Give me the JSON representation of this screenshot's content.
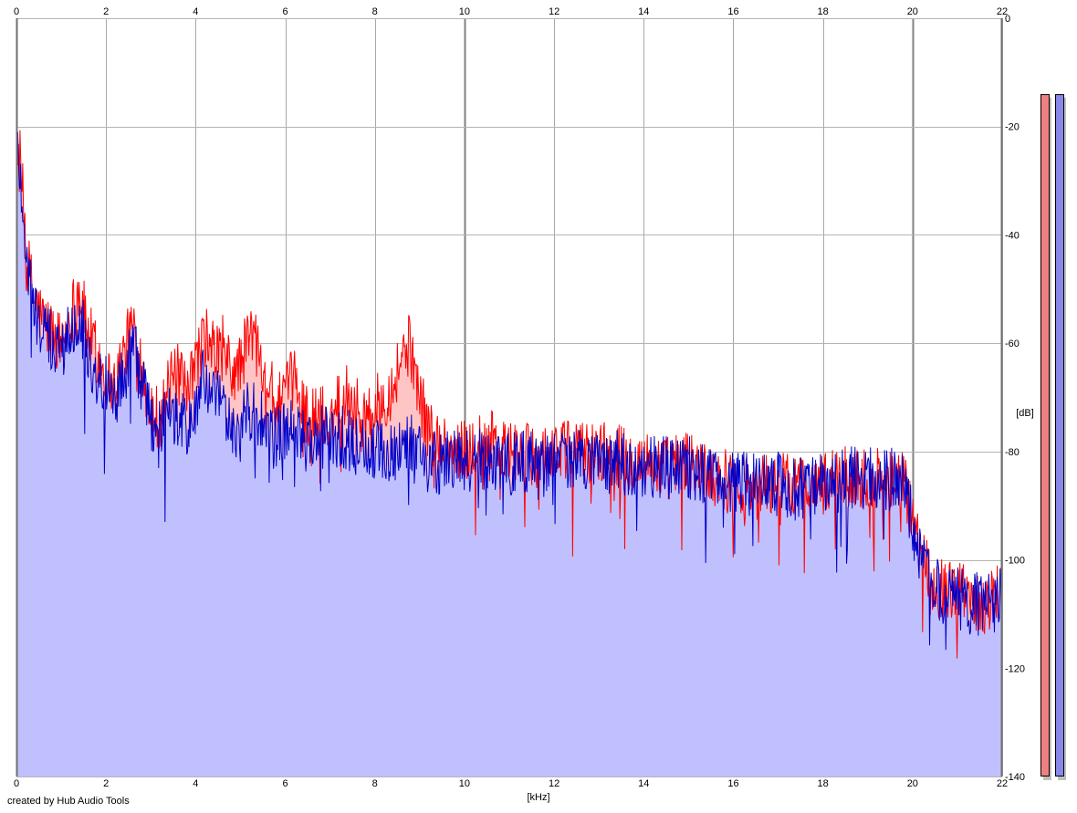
{
  "chart_data": {
    "type": "area",
    "xlabel": "[kHz]",
    "ylabel": "[dB]",
    "xlim": [
      0,
      22
    ],
    "ylim": [
      -140,
      0
    ],
    "x_ticks": [
      0,
      2,
      4,
      6,
      8,
      10,
      12,
      14,
      16,
      18,
      20,
      22
    ],
    "y_ticks": [
      0,
      -20,
      -40,
      -60,
      -80,
      -100,
      -120,
      -140
    ],
    "grid": true,
    "series": [
      {
        "color": "#ff0000",
        "fill": "#ffc4c4",
        "x": [
          0,
          0.1,
          0.25,
          0.4,
          0.6,
          0.8,
          1.0,
          1.2,
          1.4,
          1.6,
          1.8,
          2.0,
          2.2,
          2.4,
          2.6,
          2.8,
          3.0,
          3.2,
          3.4,
          3.6,
          3.8,
          4.0,
          4.2,
          4.4,
          4.6,
          4.8,
          5.0,
          5.2,
          5.4,
          5.6,
          5.8,
          6.0,
          6.2,
          6.4,
          6.6,
          6.8,
          7.0,
          7.2,
          7.4,
          7.6,
          7.8,
          8.0,
          8.2,
          8.4,
          8.6,
          8.8,
          9.0,
          9.2,
          9.4,
          9.6,
          9.8,
          10.0,
          10.5,
          11.0,
          11.5,
          12.0,
          12.5,
          13.0,
          13.5,
          14.0,
          14.5,
          15.0,
          15.5,
          16.0,
          16.5,
          17.0,
          17.5,
          18.0,
          18.5,
          19.0,
          19.5,
          19.8,
          20.0,
          20.2,
          20.4,
          20.6,
          20.8,
          21.0,
          21.2,
          21.4,
          21.6,
          21.8,
          22.0
        ],
        "values": [
          -20,
          -28,
          -45,
          -52,
          -56,
          -58,
          -60,
          -55,
          -50,
          -58,
          -62,
          -66,
          -68,
          -62,
          -56,
          -64,
          -72,
          -74,
          -68,
          -66,
          -70,
          -64,
          -58,
          -62,
          -60,
          -66,
          -64,
          -58,
          -60,
          -66,
          -72,
          -70,
          -66,
          -72,
          -74,
          -73,
          -75,
          -70,
          -69,
          -72,
          -74,
          -72,
          -70,
          -68,
          -62,
          -60,
          -70,
          -76,
          -78,
          -79,
          -80,
          -80,
          -78,
          -80,
          -81,
          -80,
          -80,
          -80,
          -81,
          -82,
          -83,
          -82,
          -84,
          -86,
          -86,
          -86,
          -86,
          -86,
          -85,
          -85,
          -85,
          -86,
          -92,
          -100,
          -103,
          -105,
          -106,
          -106,
          -107,
          -107,
          -108,
          -107,
          -105
        ]
      },
      {
        "color": "#0000c8",
        "fill": "#c0c0ff",
        "x": [
          0,
          0.1,
          0.25,
          0.4,
          0.6,
          0.8,
          1.0,
          1.2,
          1.4,
          1.6,
          1.8,
          2.0,
          2.2,
          2.4,
          2.6,
          2.8,
          3.0,
          3.2,
          3.4,
          3.6,
          3.8,
          4.0,
          4.2,
          4.4,
          4.6,
          4.8,
          5.0,
          5.2,
          5.4,
          5.6,
          5.8,
          6.0,
          6.2,
          6.4,
          6.6,
          6.8,
          7.0,
          7.2,
          7.4,
          7.6,
          7.8,
          8.0,
          8.2,
          8.4,
          8.6,
          8.8,
          9.0,
          9.2,
          9.4,
          9.6,
          9.8,
          10.0,
          10.5,
          11.0,
          11.5,
          12.0,
          12.5,
          13.0,
          13.5,
          14.0,
          14.5,
          15.0,
          15.5,
          16.0,
          16.5,
          17.0,
          17.5,
          18.0,
          18.5,
          19.0,
          19.5,
          19.8,
          20.0,
          20.2,
          20.4,
          20.6,
          20.8,
          21.0,
          21.2,
          21.4,
          21.6,
          21.8,
          22.0
        ],
        "values": [
          -22,
          -30,
          -47,
          -54,
          -58,
          -60,
          -62,
          -57,
          -54,
          -62,
          -66,
          -68,
          -70,
          -66,
          -60,
          -68,
          -74,
          -76,
          -74,
          -74,
          -76,
          -72,
          -66,
          -70,
          -72,
          -76,
          -76,
          -72,
          -74,
          -76,
          -78,
          -76,
          -76,
          -78,
          -78,
          -77,
          -78,
          -77,
          -78,
          -79,
          -79,
          -80,
          -80,
          -80,
          -79,
          -78,
          -80,
          -82,
          -82,
          -82,
          -82,
          -82,
          -81,
          -82,
          -82,
          -81,
          -82,
          -82,
          -82,
          -83,
          -83,
          -83,
          -84,
          -86,
          -86,
          -86,
          -87,
          -86,
          -85,
          -85,
          -85,
          -86,
          -93,
          -101,
          -104,
          -106,
          -107,
          -107,
          -108,
          -108,
          -109,
          -108,
          -106
        ]
      }
    ]
  },
  "meters": [
    {
      "color": "#f08080",
      "level_db": -14
    },
    {
      "color": "#8888e8",
      "level_db": -14
    }
  ],
  "credit": "created by Hub Audio Tools"
}
